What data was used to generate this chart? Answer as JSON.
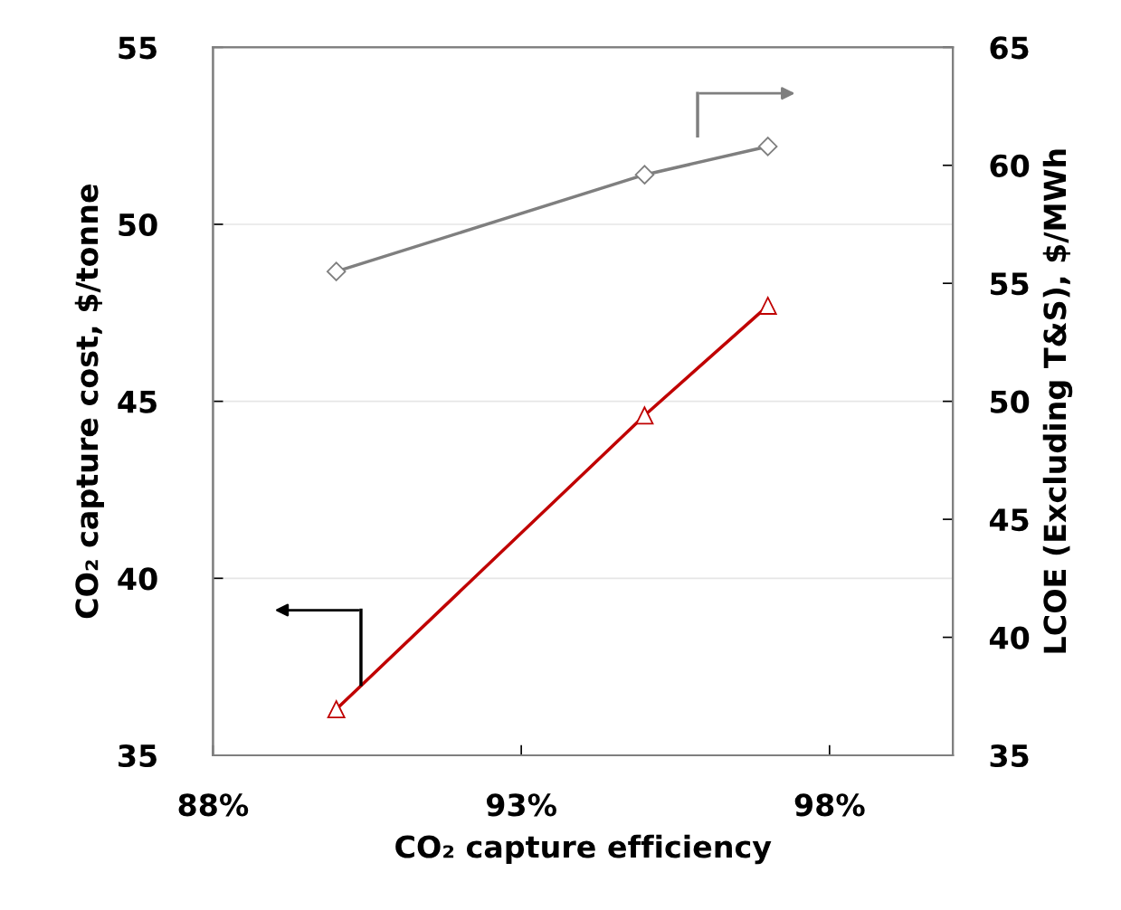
{
  "chart_data": {
    "type": "line",
    "xlabel": "CO₂ capture efficiency",
    "ylabel": "CO₂ capture cost, $/tonne",
    "y2label": "LCOE (Excluding T&S), $/MWh",
    "xlim": [
      88,
      100
    ],
    "xticks": [
      {
        "value": 88,
        "label": "88%"
      },
      {
        "value": 93,
        "label": "93%"
      },
      {
        "value": 98,
        "label": "98%"
      }
    ],
    "ylim": [
      35,
      55
    ],
    "yticks": [
      35,
      40,
      45,
      50,
      55
    ],
    "y2lim": [
      35,
      65
    ],
    "y2ticks": [
      35,
      40,
      45,
      50,
      55,
      60,
      65
    ],
    "grid": "y",
    "series": [
      {
        "color": "#c00000",
        "marker": "triangle",
        "x": [
          90,
          95,
          97
        ],
        "values": [
          36.3,
          44.6,
          47.7
        ]
      },
      {
        "color": "#7f7f7f",
        "marker": "diamond",
        "axis": "y2",
        "x": [
          90,
          95,
          97
        ],
        "values": [
          55.5,
          59.6,
          60.8
        ]
      }
    ]
  }
}
